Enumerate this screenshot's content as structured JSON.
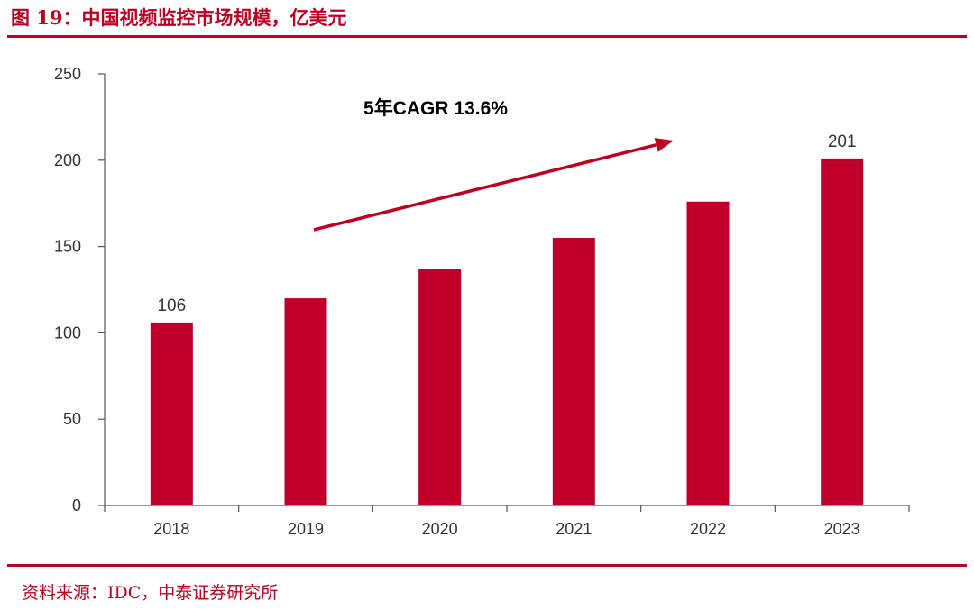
{
  "figure": {
    "title": "图 19：中国视频监控市场规模，亿美元",
    "source": "资料来源：IDC，中泰证券研究所"
  },
  "colors": {
    "accent": "#c00020",
    "bar": "#c0002b",
    "axis": "#555555",
    "text": "#333333"
  },
  "chart_data": {
    "type": "bar",
    "title": "",
    "xlabel": "",
    "ylabel": "",
    "categories": [
      "2018",
      "2019",
      "2020",
      "2021",
      "2022",
      "2023"
    ],
    "values": [
      106,
      120,
      137,
      155,
      176,
      201
    ],
    "data_labels": [
      {
        "category": "2018",
        "text": "106"
      },
      {
        "category": "2023",
        "text": "201"
      }
    ],
    "ylim": [
      0,
      250
    ],
    "yticks": [
      0,
      50,
      100,
      150,
      200,
      250
    ],
    "grid": false,
    "legend": "none",
    "annotations": [
      {
        "type": "arrow",
        "text": "5年CAGR 13.6%",
        "from_category": "2019",
        "to_category": "2022"
      }
    ]
  }
}
